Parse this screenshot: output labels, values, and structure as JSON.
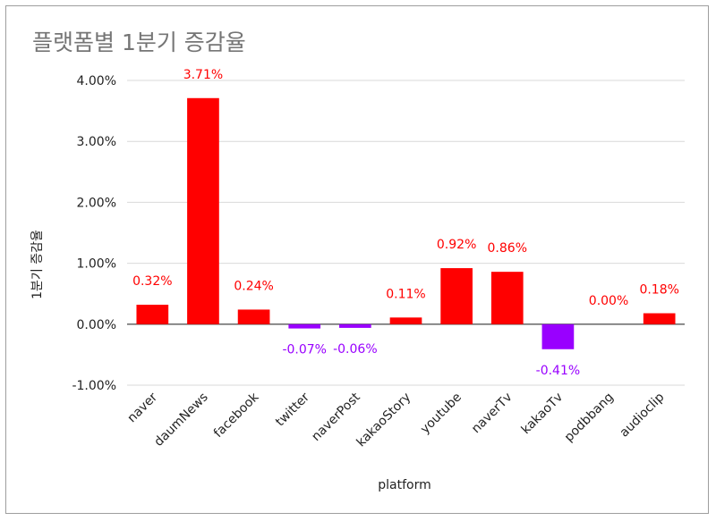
{
  "chart_data": {
    "type": "bar",
    "title": "플랫폼별 1분기 증감율",
    "xlabel": "platform",
    "ylabel": "1분기 증감율",
    "categories": [
      "naver",
      "daumNews",
      "facebook",
      "twitter",
      "naverPost",
      "kakaoStory",
      "youtube",
      "naverTv",
      "kakaoTv",
      "podbbang",
      "audioclip"
    ],
    "values": [
      0.32,
      3.71,
      0.24,
      -0.07,
      -0.06,
      0.11,
      0.92,
      0.86,
      -0.41,
      0.0,
      0.18
    ],
    "data_labels": [
      "0.32%",
      "3.71%",
      "0.24%",
      "-0.07%",
      "-0.06%",
      "0.11%",
      "0.92%",
      "0.86%",
      "-0.41%",
      "0.00%",
      "0.18%"
    ],
    "ylim": [
      -1,
      4
    ],
    "yticks": [
      -1,
      0,
      1,
      2,
      3,
      4
    ],
    "ytick_labels": [
      "-1.00%",
      "0.00%",
      "1.00%",
      "2.00%",
      "3.00%",
      "4.00%"
    ],
    "grid": true,
    "colors": {
      "positive": "#ff0000",
      "negative": "#9900ff",
      "grid": "#d9d9d9",
      "zero_line": "#333333"
    }
  }
}
